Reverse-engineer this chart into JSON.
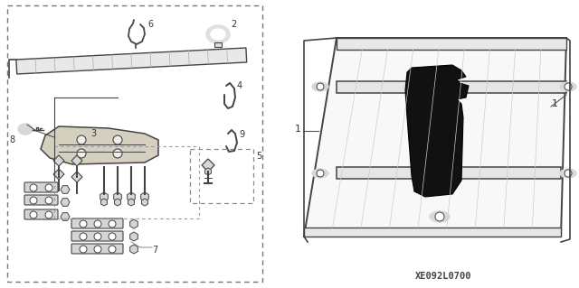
{
  "bg_color": "#ffffff",
  "fig_width": 6.4,
  "fig_height": 3.19,
  "dpi": 100,
  "diagram_code": "XE092L0700",
  "line_color": "#444444",
  "light_gray": "#bbbbbb",
  "mid_gray": "#888888",
  "dark_gray": "#555555"
}
